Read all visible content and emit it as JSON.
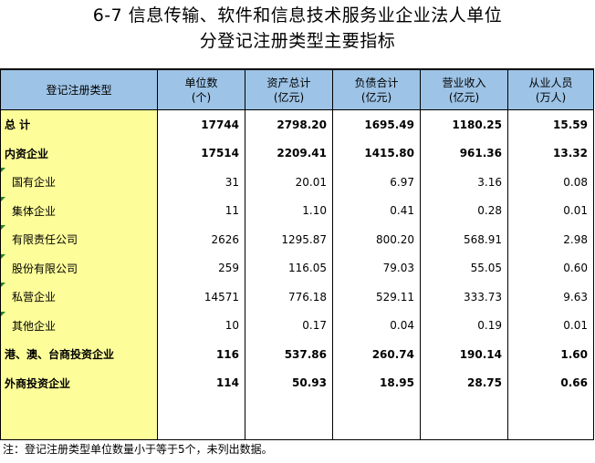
{
  "title": {
    "line1": "6-7   信息传输、软件和信息技术服务业企业法人单位",
    "line2": "分登记注册类型主要指标"
  },
  "table": {
    "headers": [
      {
        "line1": "登记注册类型",
        "line2": ""
      },
      {
        "line1": "单位数",
        "line2": "(个)"
      },
      {
        "line1": "资产总计",
        "line2": "(亿元)"
      },
      {
        "line1": "负债合计",
        "line2": "(亿元)"
      },
      {
        "line1": "营业收入",
        "line2": "(亿元)"
      },
      {
        "line1": "从业人员",
        "line2": "(万人)"
      }
    ],
    "rows": [
      {
        "label": "总  计",
        "bold": true,
        "indent": false,
        "mark": false,
        "values": [
          "17744",
          "2798.20",
          "1695.49",
          "1180.25",
          "15.59"
        ]
      },
      {
        "label": "内资企业",
        "bold": true,
        "indent": false,
        "mark": false,
        "values": [
          "17514",
          "2209.41",
          "1415.80",
          "961.36",
          "13.32"
        ]
      },
      {
        "label": "国有企业",
        "bold": false,
        "indent": true,
        "mark": true,
        "values": [
          "31",
          "20.01",
          "6.97",
          "3.16",
          "0.08"
        ]
      },
      {
        "label": "集体企业",
        "bold": false,
        "indent": true,
        "mark": true,
        "values": [
          "11",
          "1.10",
          "0.41",
          "0.28",
          "0.01"
        ]
      },
      {
        "label": "有限责任公司",
        "bold": false,
        "indent": true,
        "mark": true,
        "values": [
          "2626",
          "1295.87",
          "800.20",
          "568.91",
          "2.98"
        ]
      },
      {
        "label": "股份有限公司",
        "bold": false,
        "indent": true,
        "mark": true,
        "values": [
          "259",
          "116.05",
          "79.03",
          "55.05",
          "0.60"
        ]
      },
      {
        "label": "私营企业",
        "bold": false,
        "indent": true,
        "mark": true,
        "values": [
          "14571",
          "776.18",
          "529.11",
          "333.73",
          "9.63"
        ]
      },
      {
        "label": "其他企业",
        "bold": false,
        "indent": true,
        "mark": true,
        "values": [
          "10",
          "0.17",
          "0.04",
          "0.19",
          "0.01"
        ]
      },
      {
        "label": "港、澳、台商投资企业",
        "bold": true,
        "indent": false,
        "mark": false,
        "values": [
          "116",
          "537.86",
          "260.74",
          "190.14",
          "1.60"
        ]
      },
      {
        "label": "外商投资企业",
        "bold": true,
        "indent": false,
        "mark": false,
        "values": [
          "114",
          "50.93",
          "18.95",
          "28.75",
          "0.66"
        ]
      }
    ]
  },
  "note": "注：登记注册类型单位数量小于等于5个，未列出数据。",
  "colors": {
    "header_bg": "#9dc3e6",
    "label_bg": "#fdfd99",
    "mark": "#1e8a2e"
  }
}
